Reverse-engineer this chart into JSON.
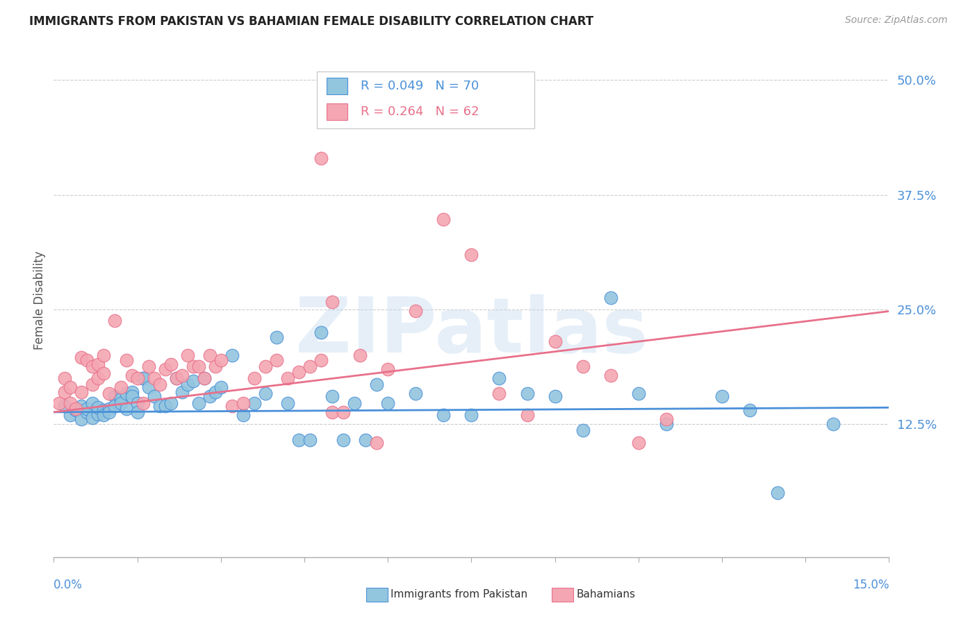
{
  "title": "IMMIGRANTS FROM PAKISTAN VS BAHAMIAN FEMALE DISABILITY CORRELATION CHART",
  "source": "Source: ZipAtlas.com",
  "ylabel": "Female Disability",
  "xlim": [
    0.0,
    0.15
  ],
  "ylim": [
    -0.02,
    0.54
  ],
  "blue_color": "#92C5DE",
  "pink_color": "#F4A6B2",
  "blue_line_color": "#4A90D9",
  "pink_line_color": "#E8708A",
  "axis_label_color": "#4A90D9",
  "watermark": "ZIPatlas",
  "blue_scatter_x": [
    0.002,
    0.003,
    0.004,
    0.005,
    0.005,
    0.006,
    0.006,
    0.007,
    0.007,
    0.008,
    0.008,
    0.009,
    0.009,
    0.01,
    0.01,
    0.011,
    0.011,
    0.012,
    0.012,
    0.013,
    0.013,
    0.014,
    0.014,
    0.015,
    0.015,
    0.016,
    0.016,
    0.017,
    0.018,
    0.019,
    0.02,
    0.021,
    0.022,
    0.023,
    0.024,
    0.025,
    0.026,
    0.027,
    0.028,
    0.029,
    0.03,
    0.032,
    0.034,
    0.036,
    0.038,
    0.04,
    0.042,
    0.044,
    0.046,
    0.048,
    0.05,
    0.052,
    0.054,
    0.056,
    0.058,
    0.06,
    0.065,
    0.07,
    0.075,
    0.08,
    0.085,
    0.09,
    0.095,
    0.1,
    0.105,
    0.11,
    0.12,
    0.13,
    0.14,
    0.125
  ],
  "blue_scatter_y": [
    0.145,
    0.135,
    0.14,
    0.13,
    0.145,
    0.138,
    0.142,
    0.132,
    0.148,
    0.136,
    0.143,
    0.14,
    0.135,
    0.142,
    0.138,
    0.155,
    0.145,
    0.152,
    0.148,
    0.158,
    0.142,
    0.16,
    0.155,
    0.148,
    0.138,
    0.175,
    0.175,
    0.165,
    0.155,
    0.145,
    0.145,
    0.148,
    0.175,
    0.16,
    0.168,
    0.172,
    0.148,
    0.175,
    0.155,
    0.16,
    0.165,
    0.2,
    0.135,
    0.148,
    0.158,
    0.22,
    0.148,
    0.108,
    0.108,
    0.225,
    0.155,
    0.108,
    0.148,
    0.108,
    0.168,
    0.148,
    0.158,
    0.135,
    0.135,
    0.175,
    0.158,
    0.155,
    0.118,
    0.263,
    0.158,
    0.125,
    0.155,
    0.05,
    0.125,
    0.14
  ],
  "pink_scatter_x": [
    0.001,
    0.002,
    0.002,
    0.003,
    0.003,
    0.004,
    0.005,
    0.005,
    0.006,
    0.007,
    0.007,
    0.008,
    0.008,
    0.009,
    0.009,
    0.01,
    0.011,
    0.012,
    0.013,
    0.014,
    0.015,
    0.016,
    0.017,
    0.018,
    0.019,
    0.02,
    0.021,
    0.022,
    0.023,
    0.024,
    0.025,
    0.026,
    0.027,
    0.028,
    0.029,
    0.03,
    0.032,
    0.034,
    0.036,
    0.038,
    0.04,
    0.042,
    0.044,
    0.046,
    0.048,
    0.05,
    0.052,
    0.055,
    0.058,
    0.06,
    0.065,
    0.07,
    0.075,
    0.08,
    0.085,
    0.09,
    0.095,
    0.1,
    0.105,
    0.11,
    0.048,
    0.05
  ],
  "pink_scatter_y": [
    0.148,
    0.175,
    0.16,
    0.165,
    0.148,
    0.142,
    0.198,
    0.16,
    0.195,
    0.188,
    0.168,
    0.19,
    0.175,
    0.2,
    0.18,
    0.158,
    0.238,
    0.165,
    0.195,
    0.178,
    0.175,
    0.148,
    0.188,
    0.175,
    0.168,
    0.185,
    0.19,
    0.175,
    0.178,
    0.2,
    0.188,
    0.188,
    0.175,
    0.2,
    0.188,
    0.195,
    0.145,
    0.148,
    0.175,
    0.188,
    0.195,
    0.175,
    0.182,
    0.188,
    0.195,
    0.138,
    0.138,
    0.2,
    0.105,
    0.185,
    0.248,
    0.348,
    0.31,
    0.158,
    0.135,
    0.215,
    0.188,
    0.178,
    0.105,
    0.13,
    0.415,
    0.258
  ],
  "blue_trend_x": [
    0.0,
    0.15
  ],
  "blue_trend_y": [
    0.138,
    0.143
  ],
  "pink_trend_x": [
    0.0,
    0.15
  ],
  "pink_trend_y": [
    0.138,
    0.248
  ],
  "ytick_vals": [
    0.125,
    0.25,
    0.375,
    0.5
  ],
  "ytick_labels": [
    "12.5%",
    "25.0%",
    "37.5%",
    "50.0%"
  ]
}
